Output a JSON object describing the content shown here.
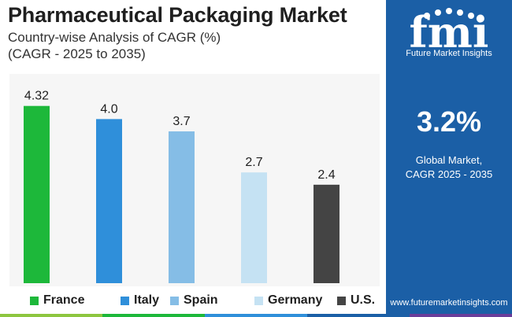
{
  "header": {
    "title": "Pharmaceutical Packaging Market",
    "subtitle": "Country-wise Analysis of CAGR (%)",
    "period": "(CAGR - 2025 to 2035)"
  },
  "chart_data": {
    "type": "bar",
    "categories": [
      "France",
      "Italy",
      "Spain",
      "Germany",
      "U.S."
    ],
    "values": [
      4.32,
      4.0,
      3.7,
      2.7,
      2.4
    ],
    "value_labels": [
      "4.32",
      "4.0",
      "3.7",
      "2.7",
      "2.4"
    ],
    "colors": [
      "#1db83a",
      "#2f8fda",
      "#85bde6",
      "#c5e2f3",
      "#444444"
    ],
    "ylim": [
      0,
      5.1
    ],
    "grid": false,
    "legend": "bottom",
    "title": "Country-wise Analysis of CAGR (%)"
  },
  "sidebar": {
    "brand": "Future Market Insights",
    "logo_text": "fmi",
    "kpi_value": "3.2%",
    "kpi_label_line1": "Global Market,",
    "kpi_label_line2": "CAGR 2025 - 2035",
    "website": "www.futuremarketinsights.com",
    "background_color": "#1b5fa6"
  },
  "bottom_strip_colors": [
    "#8dc63f",
    "#1db83a",
    "#2f8fda",
    "#1b5fa6",
    "#6a3d9a"
  ]
}
